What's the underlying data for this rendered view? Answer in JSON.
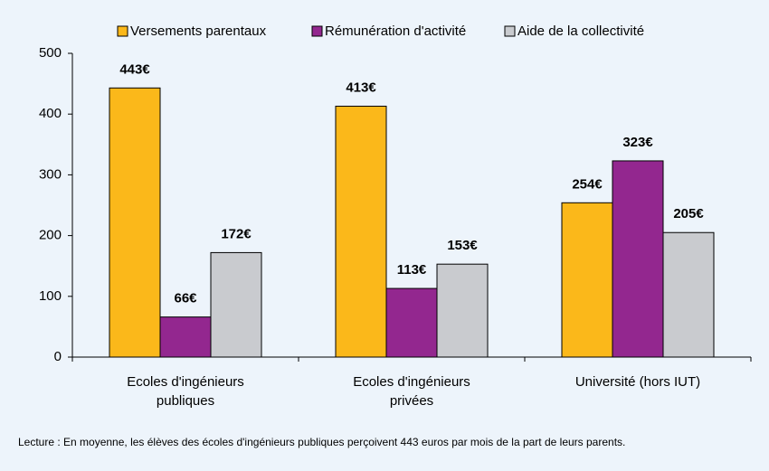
{
  "chart_data": {
    "type": "bar",
    "categories": [
      "Ecoles d'ingénieurs publiques",
      "Ecoles d'ingénieurs privées",
      "Université (hors IUT)"
    ],
    "series": [
      {
        "name": "Versements parentaux",
        "color": "#fbb81a",
        "values": [
          443,
          413,
          254
        ],
        "value_labels": [
          "443€",
          "413€",
          "254€"
        ]
      },
      {
        "name": "Rémunération d'activité",
        "color": "#93278f",
        "values": [
          66,
          113,
          323
        ],
        "value_labels": [
          "66€",
          "113€",
          "323€"
        ]
      },
      {
        "name": "Aide de la collectivité",
        "color": "#c9cbcf",
        "values": [
          172,
          153,
          205
        ],
        "value_labels": [
          "172€",
          "153€",
          "205€"
        ]
      }
    ],
    "ylim": [
      0,
      500
    ],
    "yticks": [
      0,
      100,
      200,
      300,
      400,
      500
    ],
    "grid": false,
    "legend": "top",
    "note": "Lecture : En moyenne, les élèves des écoles d'ingénieurs publiques perçoivent 443 euros par mois de la part de leurs parents."
  }
}
